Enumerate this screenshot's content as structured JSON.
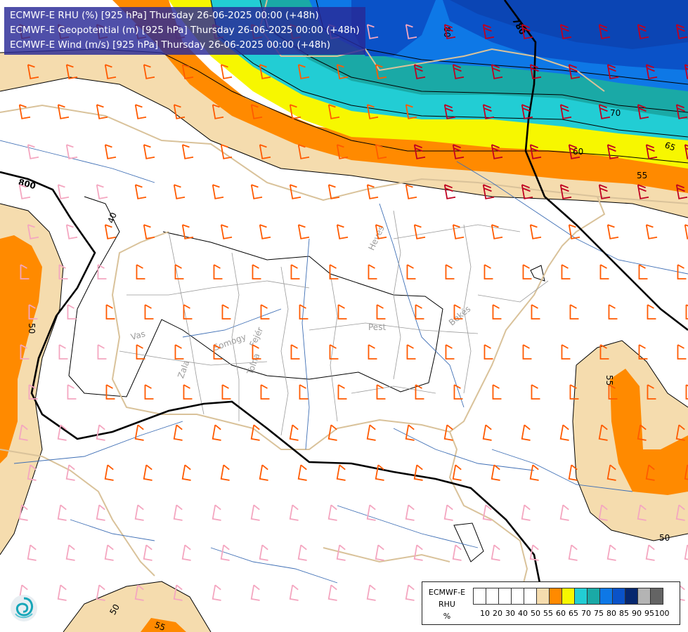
{
  "header": {
    "lines": [
      "ECMWF-E RHU (%) [925 hPa] Thursday 26-06-2025 00:00 (+48h)",
      "ECMWF-E Geopotential (m) [925 hPa] Thursday 26-06-2025 00:00 (+48h)",
      "ECMWF-E Wind (m/s) [925 hPa] Thursday 26-06-2025 00:00 (+48h)"
    ]
  },
  "legend": {
    "title_lines": [
      "ECMWF-E",
      "RHU",
      "%"
    ],
    "tick_labels": [
      "10",
      "20",
      "30",
      "40",
      "50",
      "55",
      "60",
      "65",
      "70",
      "75",
      "80",
      "85",
      "90",
      "95",
      "100"
    ],
    "swatch_colors": [
      "#ffffff",
      "#ffffff",
      "#ffffff",
      "#ffffff",
      "#ffffff",
      "#f5dcae",
      "#ff8a00",
      "#f7f700",
      "#22cdd4",
      "#1aa9a6",
      "#0e78e6",
      "#0a52c8",
      "#06276e",
      "#b4b4b4",
      "#646464"
    ]
  },
  "rhu_labels": [
    "40",
    "50",
    "55",
    "60",
    "65",
    "70",
    "80",
    "50",
    "55",
    "50",
    "55",
    "50"
  ],
  "geopotential_labels": [
    "800",
    "780"
  ],
  "place_labels": [
    "Vas",
    "Somogy",
    "Fejér",
    "Zala",
    "Tolna",
    "Pest",
    "Heves",
    "Békés"
  ],
  "colors": {
    "rhu_55": "#f5dcae",
    "rhu_60": "#ff8a00",
    "rhu_65": "#f7f700",
    "rhu_70": "#22cdd4",
    "rhu_75": "#1aa9a6",
    "rhu_80": "#0e78e6",
    "rhu_85": "#0a52c8",
    "rhu_90": "#06276e",
    "border": "#d9c29a",
    "river": "#3f6fb5",
    "wind_light": "#f4a6c0",
    "wind_mid": "#ff5a00",
    "wind_strong": "#c00020"
  },
  "logo": "ecmwf-swirl-logo"
}
